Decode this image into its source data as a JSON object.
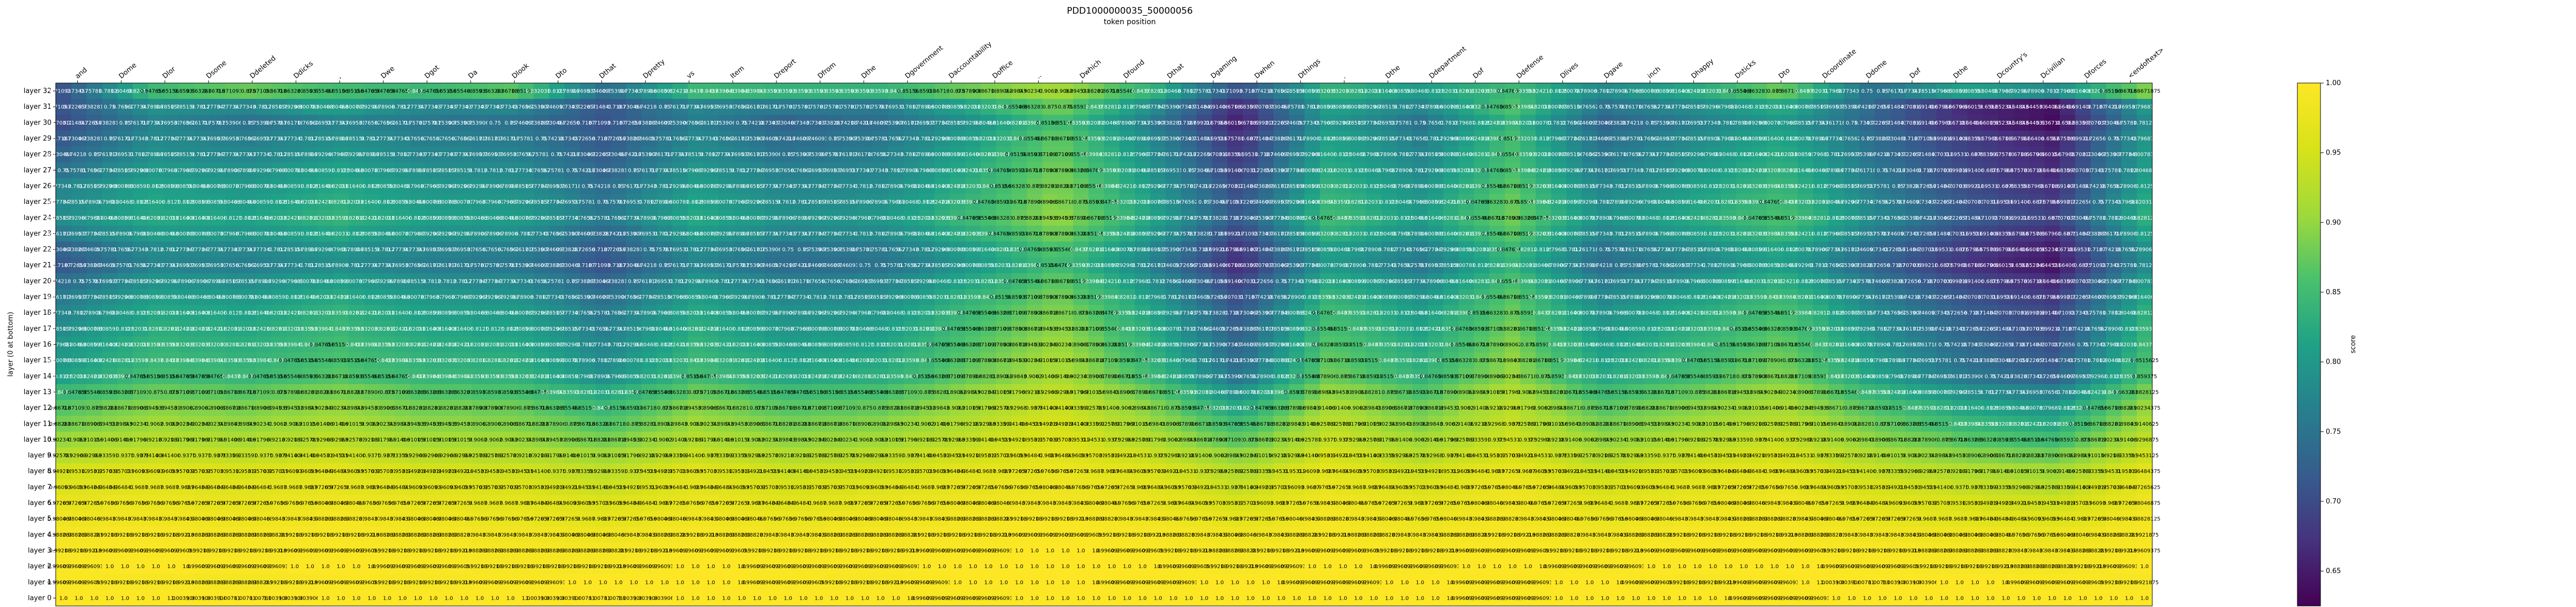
{
  "chart_data": {
    "type": "heatmap",
    "title": "PDD1000000035_50000056",
    "xlabel": "token position",
    "ylabel": "layer (0 at bottom)",
    "colorbar_label": "score",
    "colormap": "viridis",
    "vmin": 0.625,
    "vmax": 1.0,
    "colorbar_ticks": [
      0.65,
      0.7,
      0.75,
      0.8,
      0.85,
      0.9,
      0.95,
      1.0
    ],
    "x_tokens": [
      "and",
      "Dome",
      "Dlor",
      "Dsome",
      "Ddeleted",
      "Ddicks",
      ",",
      "Dwe",
      "Dgot",
      "Da",
      "Dlook",
      "Dto",
      "Dthat",
      "Dpretty",
      "vs",
      "Item",
      "Dreport",
      "Dfrom",
      "Dthe",
      "Dgovernment",
      "Daccountability",
      "Doffice",
      "..",
      "Dwhich",
      "Dfound",
      "Dthat",
      "Dgaming",
      "Dwhen",
      "Dthings",
      ".",
      "Dthe",
      "Ddepartment",
      "Dof",
      "Ddefense",
      "Dlives",
      "Dgave",
      "inch",
      "Dhappy",
      "Dsticks",
      "Dto",
      "Dcoordinate",
      "Ddome",
      "Dof",
      "Dthe",
      "Dcountry's",
      "Dcivilian",
      "Dforces",
      "<endoftext>"
    ],
    "y_labels": [
      "layer 32",
      "layer 31",
      "layer 30",
      "layer 29",
      "layer 28",
      "layer 27",
      "layer 26",
      "layer 25",
      "layer 24",
      "layer 23",
      "layer 22",
      "layer 21",
      "layer 20",
      "layer 19",
      "layer 18",
      "layer 17",
      "layer 16",
      "layer 15",
      "layer 14",
      "layer 13",
      "layer 12",
      "layer 11",
      "layer 10",
      "layer 9",
      "layer 8",
      "layer 7",
      "layer 6",
      "layer 5",
      "layer 4",
      "layer 3",
      "layer 2",
      "layer 1",
      "layer 0"
    ],
    "row_anchors": [
      [
        0.7109375,
        0.84765625,
        0.875,
        0.8515625,
        0.84375,
        0.8671875,
        0.7421875,
        0.84375,
        0.8359375,
        0.8359375,
        0.87890625,
        0.91015625,
        0.83984375,
        0.703125,
        0.8359375,
        0.8046875,
        0.84765625,
        0.78125,
        0.8203125,
        0.87890625,
        0.7421875,
        0.8125,
        0.78125,
        0.88671875
      ],
      [
        0.7109375,
        0.7890625,
        0.7734375,
        0.80859375,
        0.7734375,
        0.7734375,
        0.7109375,
        0.7734375,
        0.7578125,
        0.7578125,
        0.81640625,
        0.8828125,
        0.7890625,
        0.6640625,
        0.8125,
        0.7734375,
        0.859375,
        0.75,
        0.78125,
        0.82421875,
        0.734375,
        0.6640625,
        0.640625,
        0.796875
      ],
      [
        0.703125,
        0.7734375,
        0.75,
        0.7734375,
        0.7578125,
        0.75,
        0.7109375,
        0.765625,
        0.73046875,
        0.74609375,
        0.7890625,
        0.859375,
        0.765625,
        0.65625,
        0.80078125,
        0.75,
        0.83984375,
        0.73046875,
        0.765625,
        0.8046875,
        0.73046875,
        0.66796875,
        0.63671875,
        0.78125
      ],
      [
        0.71875,
        0.78125,
        0.765625,
        0.7890625,
        0.765625,
        0.76171875,
        0.71875,
        0.77734375,
        0.7421875,
        0.7578125,
        0.8046875,
        0.875,
        0.78125,
        0.671875,
        0.81640625,
        0.765625,
        0.8515625,
        0.74609375,
        0.78125,
        0.8203125,
        0.74609375,
        0.6875,
        0.65625,
        0.796875
      ],
      [
        0.73046875,
        0.7890625,
        0.7734375,
        0.796875,
        0.7734375,
        0.76953125,
        0.72265625,
        0.78515625,
        0.75,
        0.765625,
        0.8125,
        0.87890625,
        0.7890625,
        0.6796875,
        0.8203125,
        0.7734375,
        0.85546875,
        0.75390625,
        0.7890625,
        0.828125,
        0.75,
        0.69140625,
        0.66015625,
        0.80078125
      ],
      [
        0.75,
        0.80078125,
        0.7890625,
        0.8125,
        0.78515625,
        0.78125,
        0.73046875,
        0.796875,
        0.765625,
        0.7734375,
        0.8203125,
        0.88671875,
        0.796875,
        0.6875,
        0.828125,
        0.78125,
        0.859375,
        0.76171875,
        0.796875,
        0.8359375,
        0.7578125,
        0.6953125,
        0.6640625,
        0.8046875
      ],
      [
        0.7734375,
        0.8125,
        0.796875,
        0.8203125,
        0.796875,
        0.7890625,
        0.7421875,
        0.8046875,
        0.7734375,
        0.78125,
        0.828125,
        0.890625,
        0.8046875,
        0.69921875,
        0.8359375,
        0.7890625,
        0.8671875,
        0.7734375,
        0.8046875,
        0.84375,
        0.765625,
        0.703125,
        0.671875,
        0.8125
      ],
      [
        0.77734375,
        0.81640625,
        0.8046875,
        0.828125,
        0.80078125,
        0.796875,
        0.75,
        0.8125,
        0.78125,
        0.7890625,
        0.8359375,
        0.89453125,
        0.8125,
        0.70703125,
        0.84375,
        0.796875,
        0.875,
        0.78125,
        0.8125,
        0.8515625,
        0.7734375,
        0.7109375,
        0.6796875,
        0.8203125
      ],
      [
        0.78515625,
        0.8203125,
        0.8125,
        0.8359375,
        0.80859375,
        0.8046875,
        0.7578125,
        0.8203125,
        0.7890625,
        0.796875,
        0.84375,
        0.8984375,
        0.8203125,
        0.71484375,
        0.8515625,
        0.8046875,
        0.87890625,
        0.7890625,
        0.8203125,
        0.859375,
        0.78125,
        0.71875,
        0.6875,
        0.828125
      ],
      [
        0.76171875,
        0.8046875,
        0.796875,
        0.8203125,
        0.79296875,
        0.7890625,
        0.734375,
        0.8046875,
        0.7734375,
        0.78125,
        0.828125,
        0.8828125,
        0.8046875,
        0.6953125,
        0.8359375,
        0.7890625,
        0.8671875,
        0.7734375,
        0.8046875,
        0.84375,
        0.765625,
        0.69921875,
        0.66796875,
        0.8125
      ],
      [
        0.73046875,
        0.78125,
        0.7734375,
        0.796875,
        0.76953125,
        0.765625,
        0.71875,
        0.78125,
        0.75,
        0.7578125,
        0.8046875,
        0.86328125,
        0.78125,
        0.67578125,
        0.8125,
        0.765625,
        0.84765625,
        0.75,
        0.78125,
        0.8203125,
        0.7421875,
        0.68359375,
        0.65234375,
        0.7890625
      ],
      [
        0.71875,
        0.7734375,
        0.765625,
        0.7890625,
        0.76171875,
        0.7578125,
        0.7109375,
        0.7734375,
        0.7421875,
        0.75,
        0.796875,
        0.85546875,
        0.7734375,
        0.66796875,
        0.8046875,
        0.7578125,
        0.83984375,
        0.7421875,
        0.7734375,
        0.8125,
        0.734375,
        0.67578125,
        0.64453125,
        0.78125
      ],
      [
        0.7421875,
        0.79296875,
        0.78515625,
        0.80859375,
        0.78125,
        0.77734375,
        0.73046875,
        0.79296875,
        0.76171875,
        0.76953125,
        0.81640625,
        0.87109375,
        0.79296875,
        0.6875,
        0.82421875,
        0.77734375,
        0.85546875,
        0.76171875,
        0.79296875,
        0.83203125,
        0.75390625,
        0.6953125,
        0.6640625,
        0.80078125
      ],
      [
        0.76171875,
        0.80859375,
        0.80078125,
        0.82421875,
        0.796875,
        0.79296875,
        0.74609375,
        0.80859375,
        0.77734375,
        0.78515625,
        0.83203125,
        0.8828125,
        0.80859375,
        0.703125,
        0.83984375,
        0.79296875,
        0.8671875,
        0.77734375,
        0.80859375,
        0.84765625,
        0.76953125,
        0.7109375,
        0.6796875,
        0.81640625
      ],
      [
        0.7734375,
        0.8203125,
        0.8125,
        0.8359375,
        0.80859375,
        0.8046875,
        0.7578125,
        0.8203125,
        0.7890625,
        0.796875,
        0.84375,
        0.890625,
        0.8203125,
        0.71484375,
        0.8515625,
        0.8046875,
        0.875,
        0.7890625,
        0.8203125,
        0.859375,
        0.78125,
        0.72265625,
        0.69140625,
        0.828125
      ],
      [
        0.78515625,
        0.828125,
        0.8203125,
        0.84375,
        0.81640625,
        0.8125,
        0.765625,
        0.828125,
        0.796875,
        0.8046875,
        0.8515625,
        0.8984375,
        0.828125,
        0.72265625,
        0.859375,
        0.8125,
        0.8828125,
        0.796875,
        0.828125,
        0.8671875,
        0.7890625,
        0.73046875,
        0.69921875,
        0.8359375
      ],
      [
        0.796875,
        0.8359375,
        0.828125,
        0.8515625,
        0.82421875,
        0.8203125,
        0.7734375,
        0.8359375,
        0.8046875,
        0.8125,
        0.859375,
        0.90625,
        0.8359375,
        0.73046875,
        0.8671875,
        0.8203125,
        0.890625,
        0.8046875,
        0.8359375,
        0.875,
        0.796875,
        0.73828125,
        0.70703125,
        0.84375
      ],
      [
        0.80078125,
        0.84375,
        0.8359375,
        0.859375,
        0.83203125,
        0.828125,
        0.78125,
        0.84375,
        0.8125,
        0.8203125,
        0.8671875,
        0.9140625,
        0.84375,
        0.73828125,
        0.875,
        0.828125,
        0.8984375,
        0.8125,
        0.84375,
        0.8828125,
        0.8046875,
        0.74609375,
        0.71484375,
        0.8515625
      ],
      [
        0.8125,
        0.8515625,
        0.84375,
        0.8671875,
        0.83984375,
        0.8359375,
        0.7890625,
        0.8515625,
        0.8203125,
        0.828125,
        0.875,
        0.91796875,
        0.8515625,
        0.75,
        0.8828125,
        0.8359375,
        0.90234375,
        0.8203125,
        0.8515625,
        0.890625,
        0.8125,
        0.7578125,
        0.7265625,
        0.859375
      ],
      [
        0.84375,
        0.875,
        0.8671875,
        0.88671875,
        0.86328125,
        0.859375,
        0.8203125,
        0.875,
        0.84765625,
        0.85546875,
        0.89453125,
        0.93359375,
        0.875,
        0.78515625,
        0.90234375,
        0.859375,
        0.91796875,
        0.84765625,
        0.875,
        0.90625,
        0.83984375,
        0.7890625,
        0.765625,
        0.8828125
      ],
      [
        0.8671875,
        0.89453125,
        0.88671875,
        0.90234375,
        0.8828125,
        0.87890625,
        0.84375,
        0.89453125,
        0.8671875,
        0.875,
        0.91015625,
        0.9453125,
        0.89453125,
        0.81640625,
        0.91796875,
        0.87890625,
        0.9296875,
        0.8671875,
        0.89453125,
        0.91796875,
        0.86328125,
        0.8203125,
        0.796875,
        0.90234375
      ],
      [
        0.8828125,
        0.90625,
        0.8984375,
        0.9140625,
        0.89453125,
        0.890625,
        0.86328125,
        0.90625,
        0.8828125,
        0.890625,
        0.921875,
        0.953125,
        0.90625,
        0.84375,
        0.9296875,
        0.890625,
        0.9375,
        0.8828125,
        0.90625,
        0.9296875,
        0.87890625,
        0.84375,
        0.8203125,
        0.9140625
      ],
      [
        0.90234375,
        0.921875,
        0.9140625,
        0.9296875,
        0.91015625,
        0.90625,
        0.8828125,
        0.921875,
        0.8984375,
        0.90625,
        0.93359375,
        0.9609375,
        0.921875,
        0.8671875,
        0.94140625,
        0.90625,
        0.9453125,
        0.8984375,
        0.921875,
        0.94140625,
        0.89453125,
        0.8671875,
        0.84765625,
        0.9296875
      ],
      [
        0.92578125,
        0.94140625,
        0.93359375,
        0.9453125,
        0.9296875,
        0.92578125,
        0.90625,
        0.94140625,
        0.921875,
        0.9296875,
        0.94921875,
        0.96875,
        0.94140625,
        0.89453125,
        0.953125,
        0.92578125,
        0.95703125,
        0.921875,
        0.94140625,
        0.953125,
        0.91796875,
        0.89453125,
        0.87890625,
        0.9453125
      ],
      [
        0.94921875,
        0.9609375,
        0.953125,
        0.96484375,
        0.94921875,
        0.9453125,
        0.9296875,
        0.9609375,
        0.94140625,
        0.94921875,
        0.96484375,
        0.9765625,
        0.9609375,
        0.921875,
        0.96875,
        0.9453125,
        0.97265625,
        0.94140625,
        0.9609375,
        0.96875,
        0.9375,
        0.921875,
        0.90625,
        0.96484375
      ],
      [
        0.9609375,
        0.96875,
        0.96484375,
        0.97265625,
        0.9609375,
        0.95703125,
        0.94140625,
        0.96875,
        0.953125,
        0.9609375,
        0.97265625,
        0.98046875,
        0.96875,
        0.9375,
        0.9765625,
        0.95703125,
        0.98046875,
        0.953125,
        0.96875,
        0.9765625,
        0.953125,
        0.9375,
        0.92578125,
        0.97265625
      ],
      [
        0.97265625,
        0.9765625,
        0.97265625,
        0.98046875,
        0.97265625,
        0.96875,
        0.95703125,
        0.9765625,
        0.96484375,
        0.97265625,
        0.98046875,
        0.984375,
        0.9765625,
        0.953125,
        0.984375,
        0.96875,
        0.984375,
        0.96484375,
        0.9765625,
        0.984375,
        0.96484375,
        0.953125,
        0.9453125,
        0.98046875
      ],
      [
        0.98046875,
        0.984375,
        0.98046875,
        0.98828125,
        0.98046875,
        0.9765625,
        0.96875,
        0.984375,
        0.9765625,
        0.98046875,
        0.98828125,
        0.9921875,
        0.984375,
        0.96875,
        0.98828125,
        0.9765625,
        0.98828125,
        0.9765625,
        0.984375,
        0.98828125,
        0.97265625,
        0.96875,
        0.9609375,
        0.98828125
      ],
      [
        0.98828125,
        0.9921875,
        0.98828125,
        0.9921875,
        0.98828125,
        0.984375,
        0.98046875,
        0.9921875,
        0.984375,
        0.98828125,
        0.9921875,
        0.99609375,
        0.9921875,
        0.98046875,
        0.9921875,
        0.984375,
        0.9921875,
        0.984375,
        0.9921875,
        0.9921875,
        0.984375,
        0.98046875,
        0.9765625,
        0.9921875
      ],
      [
        0.9921875,
        0.99609375,
        0.9921875,
        0.99609375,
        0.9921875,
        0.98828125,
        0.98828125,
        0.99609375,
        0.9921875,
        0.9921875,
        0.99609375,
        1.0,
        0.99609375,
        0.98828125,
        0.99609375,
        0.9921875,
        0.99609375,
        0.9921875,
        0.99609375,
        0.99609375,
        0.9921875,
        0.98828125,
        0.984375,
        0.99609375
      ],
      [
        0.99609375,
        1.0,
        0.99609375,
        1.0,
        0.99609375,
        0.9921875,
        0.9921875,
        1.0,
        0.99609375,
        0.99609375,
        1.0,
        1.0,
        1.0,
        0.9921875,
        1.0,
        0.99609375,
        1.0,
        0.99609375,
        1.0,
        1.0,
        0.99609375,
        0.9921875,
        0.98828125,
        1.0
      ],
      [
        0.99609375,
        0.9921875,
        0.98828125,
        0.99609375,
        0.9921875,
        0.99609375,
        1.0,
        1.0,
        0.99609375,
        0.9921875,
        1.0,
        1.0,
        0.99609375,
        1.0,
        0.99609375,
        1.0,
        0.99609375,
        1.0,
        0.9921875,
        0.99609375,
        1.0078125,
        1.0,
        0.99609375,
        0.9921875
      ],
      [
        1.0,
        1.0,
        1.0078125,
        1.0,
        1.0,
        1.0,
        1.0078125,
        1.0,
        1.0,
        1.0,
        0.99609375,
        1.0,
        1.0,
        1.0,
        1.0,
        1.0,
        0.99609375,
        1.0,
        1.0,
        0.99609375,
        1.0,
        1.0,
        1.0,
        1.0
      ]
    ]
  }
}
